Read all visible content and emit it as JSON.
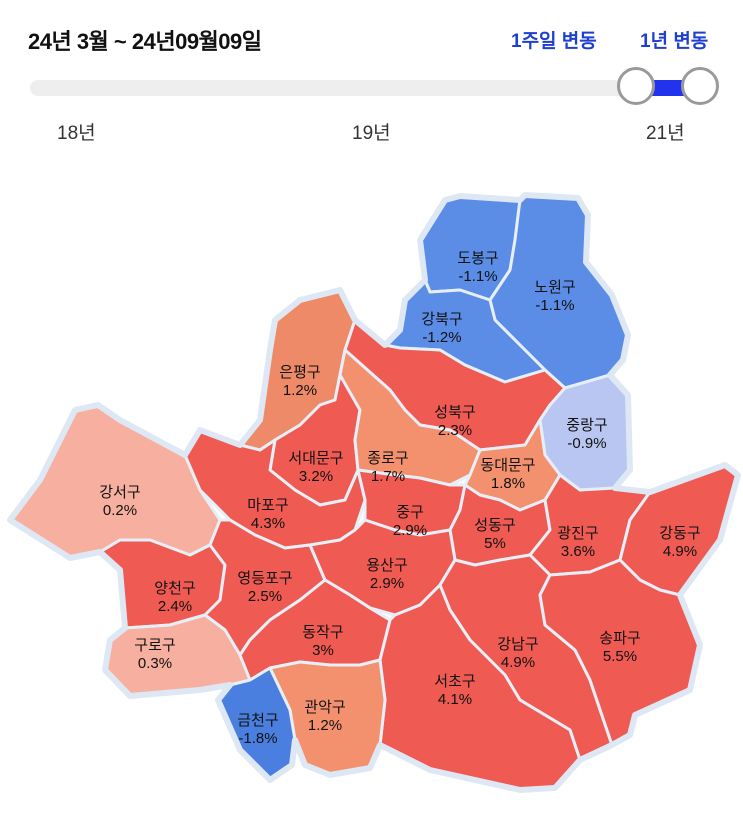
{
  "header": {
    "period": "24년 3월 ~ 24년09월09일",
    "tabs": [
      {
        "label": "1주일 변동",
        "selected": false
      },
      {
        "label": "1년 변동",
        "selected": true
      }
    ]
  },
  "slider": {
    "ticks": [
      "18년",
      "19년",
      "21년"
    ],
    "colors": {
      "track": "#eeeeee",
      "range": "#2233ee"
    }
  },
  "map": {
    "districts": [
      {
        "name": "도봉구",
        "value": "-1.1%",
        "change": -1.1,
        "color": "#5b8de6"
      },
      {
        "name": "노원구",
        "value": "-1.1%",
        "change": -1.1,
        "color": "#5b8de6"
      },
      {
        "name": "강북구",
        "value": "-1.2%",
        "change": -1.2,
        "color": "#5b8de6"
      },
      {
        "name": "은평구",
        "value": "1.2%",
        "change": 1.2,
        "color": "#ee8a68"
      },
      {
        "name": "성북구",
        "value": "2.3%",
        "change": 2.3,
        "color": "#ef5a52"
      },
      {
        "name": "중랑구",
        "value": "-0.9%",
        "change": -0.9,
        "color": "#b9c6f2"
      },
      {
        "name": "서대문구",
        "value": "3.2%",
        "change": 3.2,
        "color": "#ef5a52"
      },
      {
        "name": "종로구",
        "value": "1.7%",
        "change": 1.7,
        "color": "#f3916e"
      },
      {
        "name": "동대문구",
        "value": "1.8%",
        "change": 1.8,
        "color": "#f3916e"
      },
      {
        "name": "강서구",
        "value": "0.2%",
        "change": 0.2,
        "color": "#f7b0a0"
      },
      {
        "name": "마포구",
        "value": "4.3%",
        "change": 4.3,
        "color": "#ef5a52"
      },
      {
        "name": "중구",
        "value": "2.9%",
        "change": 2.9,
        "color": "#ef5a52"
      },
      {
        "name": "성동구",
        "value": "5%",
        "change": 5.0,
        "color": "#ef5a52"
      },
      {
        "name": "광진구",
        "value": "3.6%",
        "change": 3.6,
        "color": "#ef5a52"
      },
      {
        "name": "강동구",
        "value": "4.9%",
        "change": 4.9,
        "color": "#ef5a52"
      },
      {
        "name": "양천구",
        "value": "2.4%",
        "change": 2.4,
        "color": "#ef5a52"
      },
      {
        "name": "영등포구",
        "value": "2.5%",
        "change": 2.5,
        "color": "#ef5a52"
      },
      {
        "name": "용산구",
        "value": "2.9%",
        "change": 2.9,
        "color": "#ef5a52"
      },
      {
        "name": "구로구",
        "value": "0.3%",
        "change": 0.3,
        "color": "#f7b0a0"
      },
      {
        "name": "동작구",
        "value": "3%",
        "change": 3.0,
        "color": "#ef5a52"
      },
      {
        "name": "강남구",
        "value": "4.9%",
        "change": 4.9,
        "color": "#ef5a52"
      },
      {
        "name": "송파구",
        "value": "5.5%",
        "change": 5.5,
        "color": "#ef5a52"
      },
      {
        "name": "서초구",
        "value": "4.1%",
        "change": 4.1,
        "color": "#ef5a52"
      },
      {
        "name": "관악구",
        "value": "1.2%",
        "change": 1.2,
        "color": "#f3916e"
      },
      {
        "name": "금천구",
        "value": "-1.8%",
        "change": -1.8,
        "color": "#4a7fe0"
      }
    ]
  }
}
